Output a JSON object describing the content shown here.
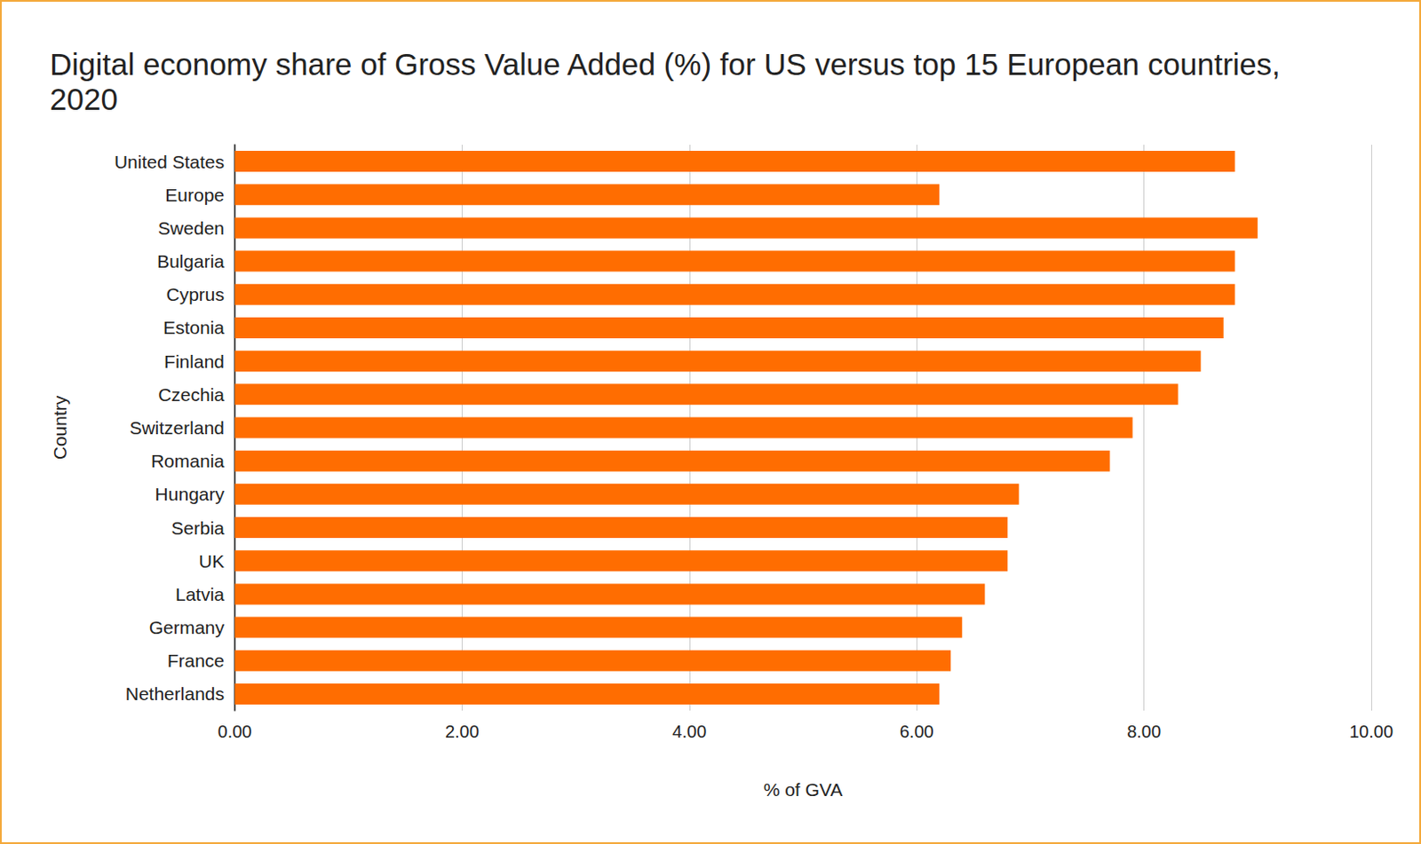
{
  "chart_data": {
    "type": "bar",
    "title": "Digital economy share of Gross Value Added (%) for US versus top 15 European countries, 2020",
    "x_label": "% of GVA",
    "y_label": "Country",
    "orientation": "horizontal",
    "categories": [
      "United States",
      "Europe",
      "Sweden",
      "Bulgaria",
      "Cyprus",
      "Estonia",
      "Finland",
      "Czechia",
      "Switzerland",
      "Romania",
      "Hungary",
      "Serbia",
      "UK",
      "Latvia",
      "Germany",
      "France",
      "Netherlands"
    ],
    "values": [
      8.8,
      6.2,
      9.0,
      8.8,
      8.8,
      8.7,
      8.5,
      8.3,
      7.9,
      7.7,
      6.9,
      6.8,
      6.8,
      6.6,
      6.4,
      6.3,
      6.2
    ],
    "color": "#ff6d01",
    "xlim": [
      0,
      10
    ],
    "xticks": [
      {
        "value": 0,
        "label": "0.00"
      },
      {
        "value": 2,
        "label": "2.00"
      },
      {
        "value": 4,
        "label": "4.00"
      },
      {
        "value": 6,
        "label": "6.00"
      },
      {
        "value": 8,
        "label": "8.00"
      },
      {
        "value": 10,
        "label": "10.00"
      }
    ],
    "grid": true
  }
}
